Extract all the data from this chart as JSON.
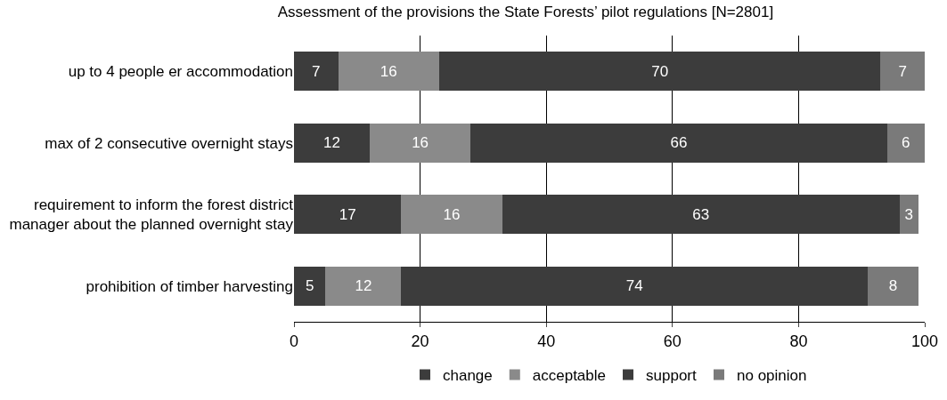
{
  "chart_data": {
    "type": "bar",
    "orientation": "horizontal",
    "stacked": true,
    "title": "Assessment of the provisions the State Forests’ pilot regulations [N=2801]",
    "categories": [
      "up to 4 people er accommodation",
      "max of 2 consecutive overnight stays",
      "requirement to inform the forest district\nmanager about the planned overnight stay",
      "prohibition of timber harvesting"
    ],
    "series": [
      {
        "name": "change",
        "color": "#3c3c3c",
        "values": [
          7,
          12,
          17,
          5
        ]
      },
      {
        "name": "acceptable",
        "color": "#8a8a8a",
        "values": [
          16,
          16,
          16,
          12
        ]
      },
      {
        "name": "support",
        "color": "#3c3c3c",
        "values": [
          70,
          66,
          63,
          74
        ]
      },
      {
        "name": "no opinion",
        "color": "#7a7a7a",
        "values": [
          7,
          6,
          3,
          8
        ]
      }
    ],
    "xlim": [
      0,
      100
    ],
    "xticks": [
      0,
      20,
      40,
      60,
      80,
      100
    ],
    "grid": "x",
    "legend": "bottom",
    "data_labels": true
  }
}
